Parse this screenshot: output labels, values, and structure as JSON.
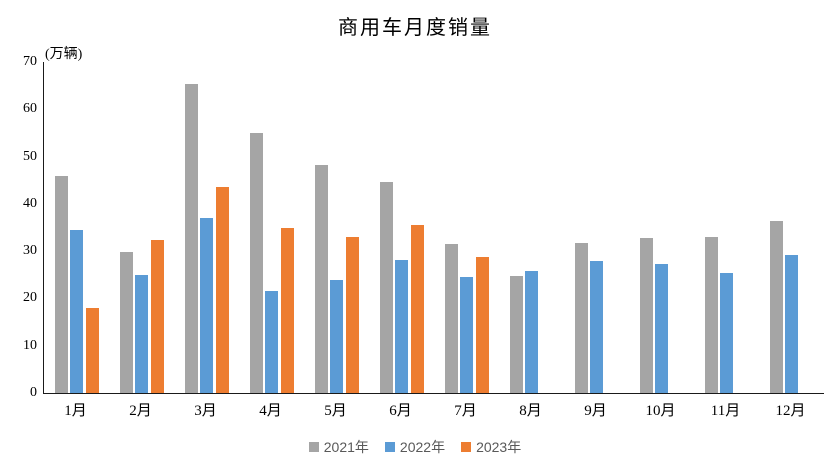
{
  "chart": {
    "title": "商用车月度销量",
    "unit_label": "(万辆)",
    "accent_colors": {
      "gray": "#A5A5A5",
      "blue": "#5B9BD5",
      "orange": "#ED7D31"
    },
    "axis_color": "#1a1a1a",
    "legend_text_color": "#595959"
  },
  "chart_data": {
    "type": "bar",
    "title": "商用车月度销量",
    "xlabel": "",
    "ylabel": "(万辆)",
    "categories": [
      "1月",
      "2月",
      "3月",
      "4月",
      "5月",
      "6月",
      "7月",
      "8月",
      "9月",
      "10月",
      "11月",
      "12月"
    ],
    "series": [
      {
        "name": "2021年",
        "color": "#A5A5A5",
        "values": [
          45.9,
          29.8,
          65.4,
          55.0,
          48.2,
          44.6,
          31.6,
          24.7,
          31.8,
          32.7,
          33.0,
          36.4
        ]
      },
      {
        "name": "2022年",
        "color": "#5B9BD5",
        "values": [
          34.5,
          25.0,
          37.0,
          21.6,
          23.9,
          28.1,
          24.5,
          25.9,
          28.0,
          27.3,
          25.4,
          29.2
        ]
      },
      {
        "name": "2023年",
        "color": "#ED7D31",
        "values": [
          18.0,
          32.4,
          43.6,
          34.8,
          33.0,
          35.5,
          28.8,
          null,
          null,
          null,
          null,
          null
        ]
      }
    ],
    "ylim": [
      0,
      70
    ],
    "yticks": [
      0,
      10,
      20,
      30,
      40,
      50,
      60,
      70
    ],
    "grid": false,
    "legend_position": "bottom"
  }
}
